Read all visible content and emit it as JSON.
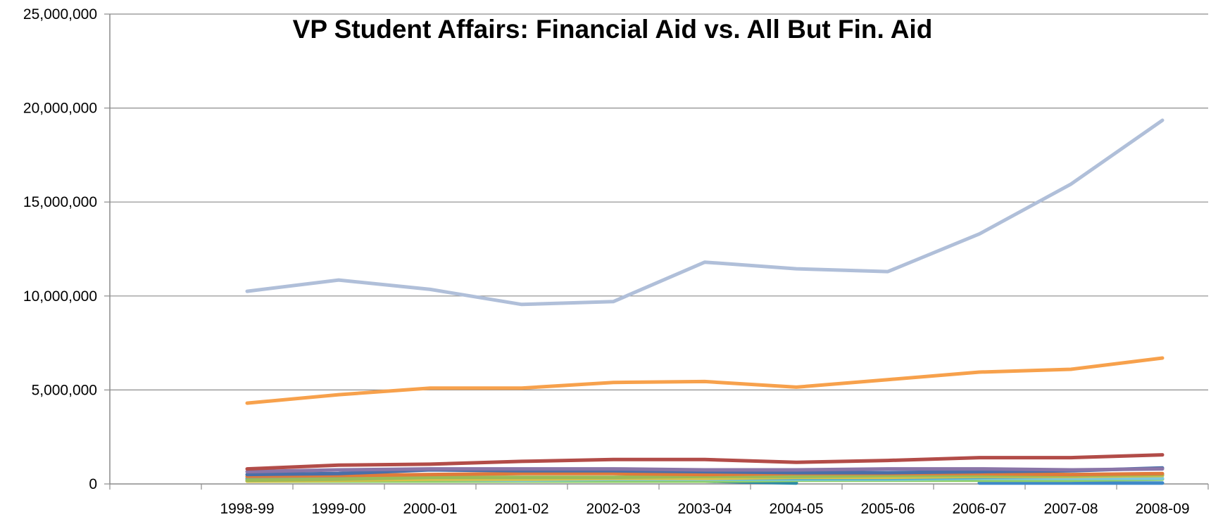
{
  "chart_data": {
    "type": "line",
    "title": "VP Student Affairs: Financial Aid vs. All But Fin. Aid",
    "xlabel": "",
    "ylabel": "",
    "categories": [
      "1998-99",
      "1999-00",
      "2000-01",
      "2001-02",
      "2002-03",
      "2003-04",
      "2004-05",
      "2005-06",
      "2006-07",
      "2007-08",
      "2008-09"
    ],
    "ylim": [
      0,
      25000000
    ],
    "yticks": [
      0,
      5000000,
      10000000,
      15000000,
      20000000,
      25000000
    ],
    "ytick_labels": [
      "0",
      "5,000,000",
      "10,000,000",
      "15,000,000",
      "20,000,000",
      "25,000,000"
    ],
    "grid": true,
    "legend": "none",
    "series": [
      {
        "color": "#b0bfd9",
        "values": [
          10250000,
          10850000,
          10350000,
          9550000,
          9700000,
          11800000,
          11450000,
          11300000,
          13300000,
          15950000,
          19350000
        ]
      },
      {
        "color": "#f7a14c",
        "values": [
          4300000,
          4750000,
          5100000,
          5100000,
          5400000,
          5450000,
          5150000,
          5550000,
          5950000,
          6100000,
          6700000
        ]
      },
      {
        "color": "#b24c48",
        "values": [
          800000,
          1000000,
          1050000,
          1200000,
          1300000,
          1300000,
          1150000,
          1250000,
          1400000,
          1400000,
          1550000
        ]
      },
      {
        "color": "#8a75a8",
        "values": [
          650000,
          750000,
          800000,
          800000,
          800000,
          750000,
          750000,
          800000,
          800000,
          750000,
          800000
        ]
      },
      {
        "color": "#4a6fa8",
        "values": [
          500000,
          550000,
          750000,
          700000,
          700000,
          650000,
          600000,
          600000,
          650000,
          700000,
          850000
        ]
      },
      {
        "color": "#e07b3a",
        "values": [
          400000,
          450000,
          500000,
          550000,
          550000,
          500000,
          550000,
          550000,
          550000,
          500000,
          550000
        ]
      },
      {
        "color": "#9bbb59",
        "values": [
          200000,
          250000,
          350000,
          350000,
          350000,
          400000,
          400000,
          450000,
          450000,
          450000,
          500000
        ]
      },
      {
        "color": "#d9c24a",
        "values": [
          150000,
          200000,
          250000,
          250000,
          300000,
          300000,
          350000,
          350000,
          400000,
          400000,
          450000
        ]
      },
      {
        "color": "#4bacc6",
        "values": [
          300000,
          350000,
          300000,
          300000,
          300000,
          300000,
          300000,
          300000,
          350000,
          400000,
          450000
        ]
      },
      {
        "color": "#7ecad9",
        "values": [
          250000,
          250000,
          250000,
          200000,
          250000,
          250000,
          250000,
          250000,
          300000,
          300000,
          300000
        ]
      },
      {
        "color": "#8fcf6a",
        "values": [
          150000,
          150000,
          150000,
          150000,
          150000,
          150000,
          200000,
          200000,
          200000,
          200000,
          250000
        ]
      },
      {
        "color": "#2e8ba6",
        "values": [
          null,
          null,
          null,
          null,
          150000,
          150000,
          50000,
          null,
          null,
          null,
          null
        ]
      },
      {
        "color": "#3f89c9",
        "values": [
          null,
          null,
          null,
          null,
          null,
          null,
          null,
          null,
          50000,
          50000,
          50000
        ]
      }
    ]
  }
}
